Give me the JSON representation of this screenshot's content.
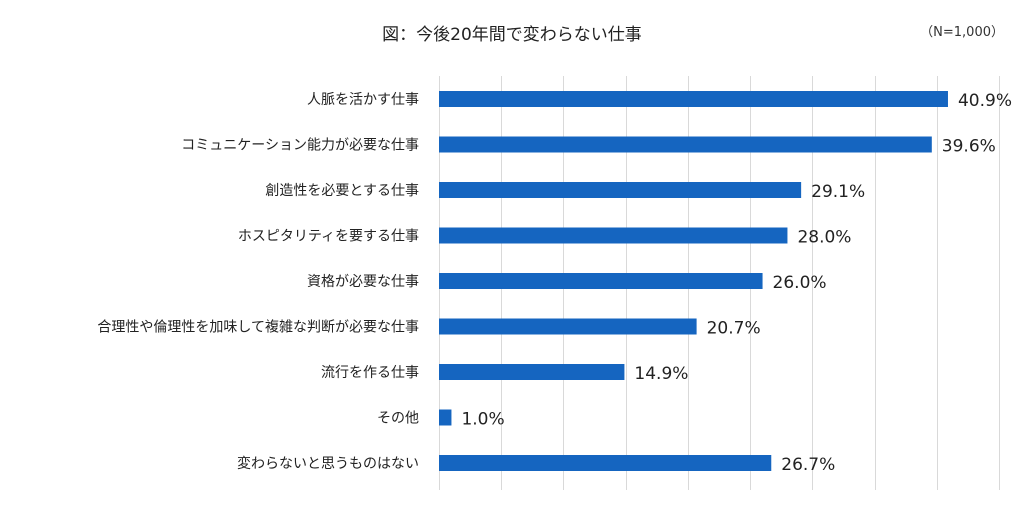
{
  "chart_data": {
    "type": "bar",
    "orientation": "horizontal",
    "title": "図：今後20年間で変わらない仕事",
    "note": "（N=1,000）",
    "unit": "%",
    "xlim": [
      0,
      45
    ],
    "grid": true,
    "categories": [
      "人脈を活かす仕事",
      "コミュニケーション能力が必要な仕事",
      "創造性を必要とする仕事",
      "ホスピタリティを要する仕事",
      "資格が必要な仕事",
      "合理性や倫理性を加味して複雑な判断が必要な仕事",
      "流行を作る仕事",
      "その他",
      "変わらないと思うものはない"
    ],
    "values": [
      40.9,
      39.6,
      29.1,
      28.0,
      26.0,
      20.7,
      14.9,
      1.0,
      26.7
    ],
    "data_labels": [
      "40.9%",
      "39.6%",
      "29.1%",
      "28.0%",
      "26.0%",
      "20.7%",
      "14.9%",
      "1.0%",
      "26.7%"
    ],
    "bar_color": "#1565C0",
    "grid_color": "#D9D9D9"
  }
}
